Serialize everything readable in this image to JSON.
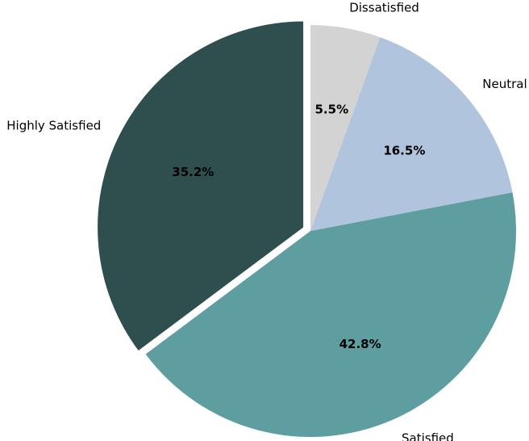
{
  "chart_data": {
    "type": "pie",
    "title": "",
    "start_angle_deg": 90,
    "direction": "clockwise",
    "exploded_slice": "Highly Satisfied",
    "slices": [
      {
        "label": "Dissatisfied",
        "value": 5.5,
        "pct_label": "5.5%",
        "color": "#d3d3d3"
      },
      {
        "label": "Neutral",
        "value": 16.5,
        "pct_label": "16.5%",
        "color": "#b0c4de"
      },
      {
        "label": "Satisfied",
        "value": 42.8,
        "pct_label": "42.8%",
        "color": "#5f9ea0"
      },
      {
        "label": "Highly Satisfied",
        "value": 35.2,
        "pct_label": "35.2%",
        "color": "#2f4f4f"
      }
    ]
  }
}
